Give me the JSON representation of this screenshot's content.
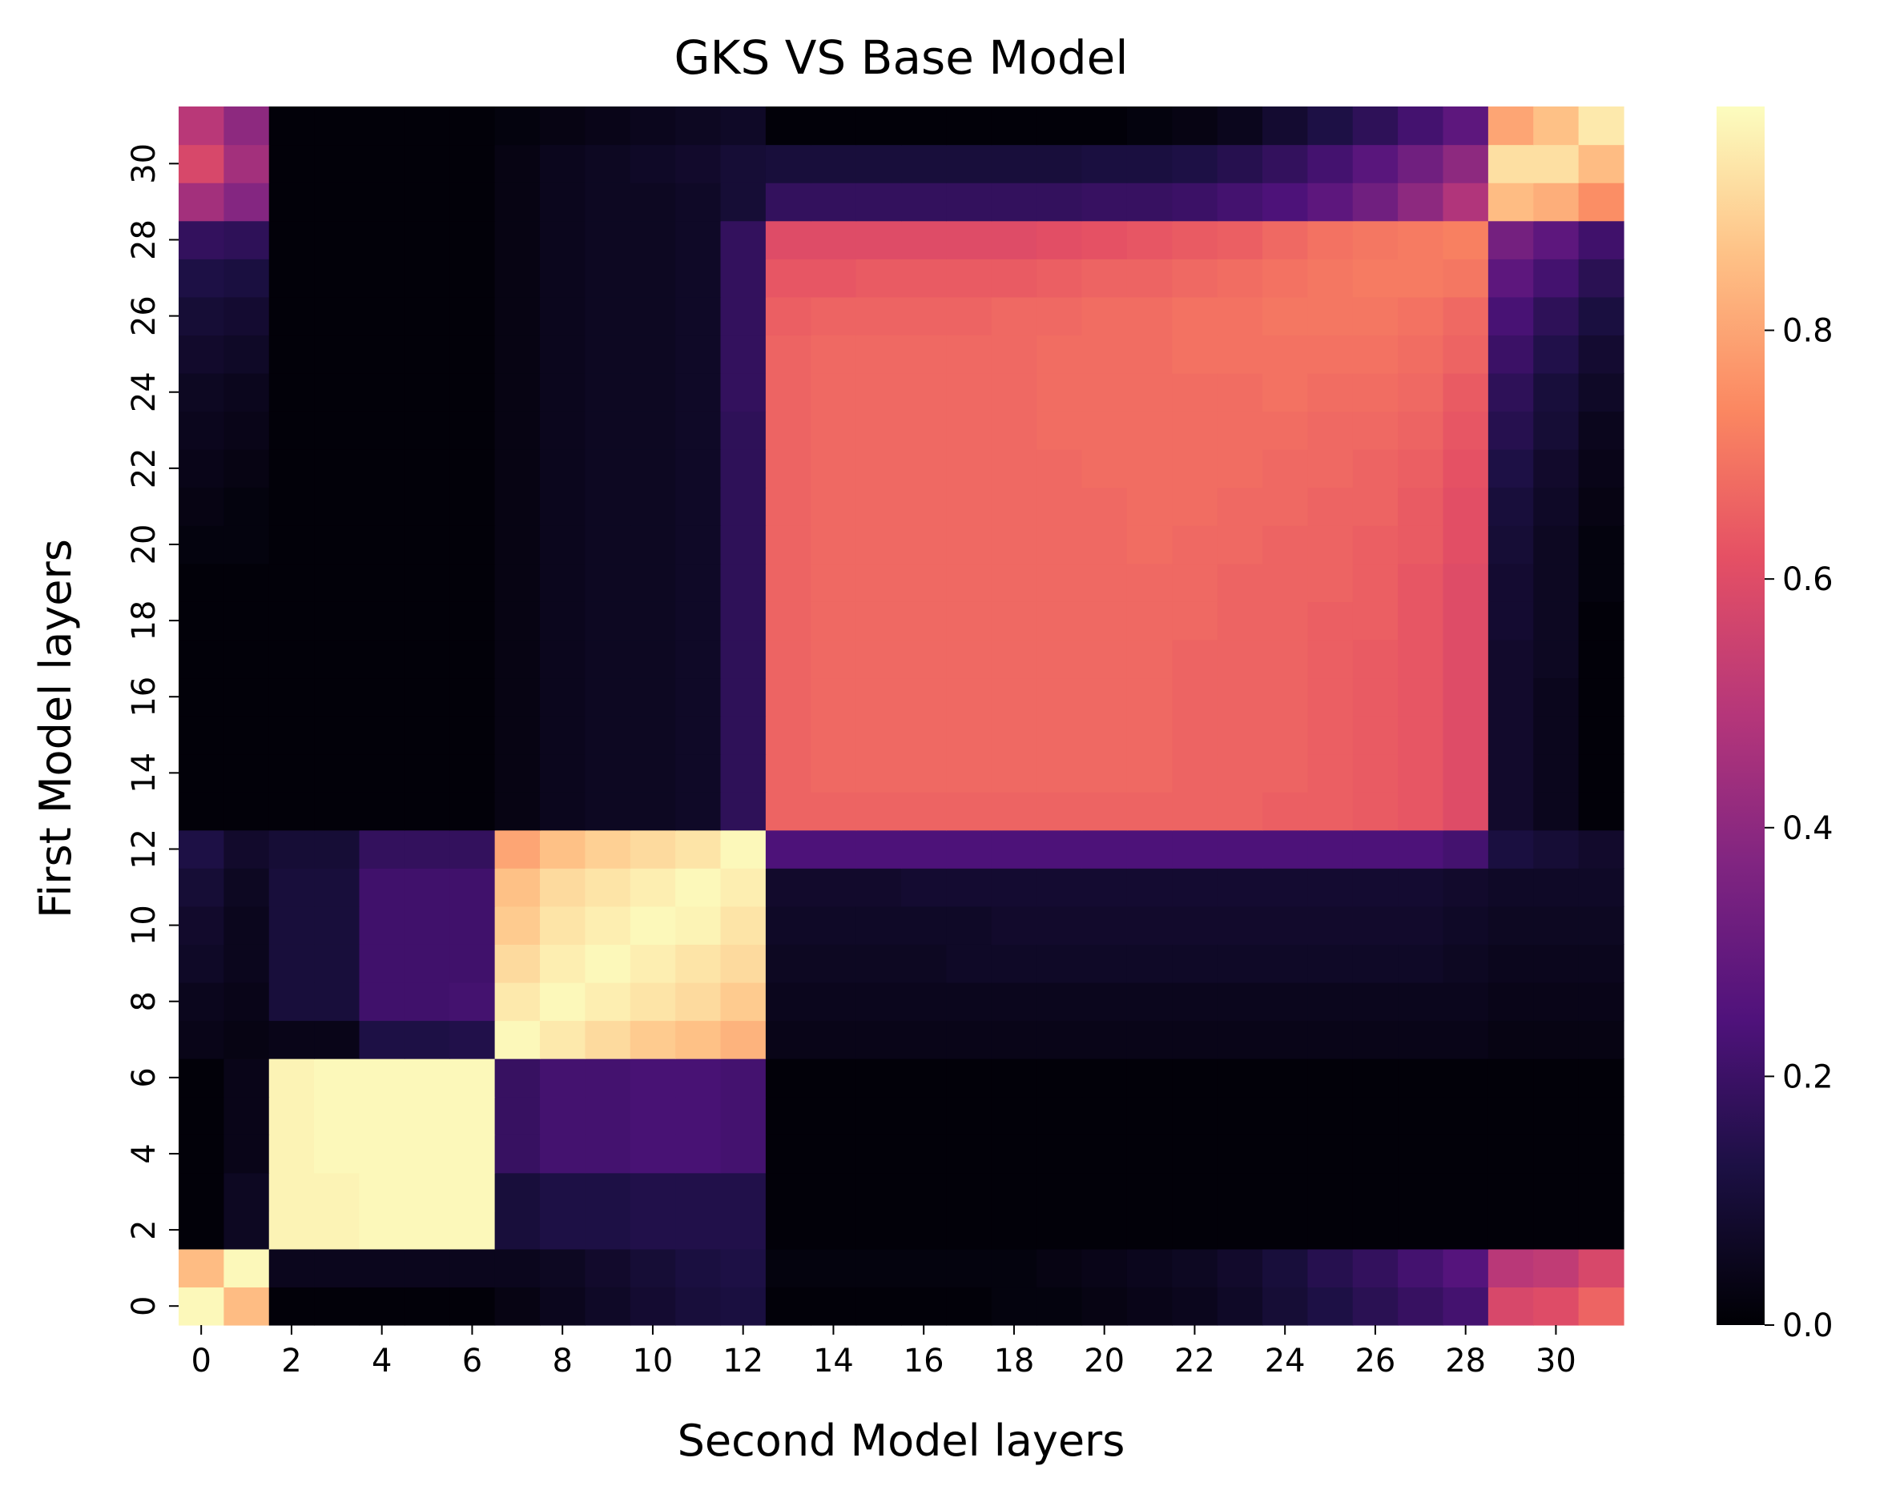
{
  "chart_data": {
    "type": "heatmap",
    "title": "GKS VS Base Model",
    "xlabel": "Second Model layers",
    "ylabel": "First Model layers",
    "rows": 32,
    "cols": 32,
    "x_tick_labels": [
      "0",
      "2",
      "4",
      "6",
      "8",
      "10",
      "12",
      "14",
      "16",
      "18",
      "20",
      "22",
      "24",
      "26",
      "28",
      "30"
    ],
    "y_tick_labels": [
      "0",
      "2",
      "4",
      "6",
      "8",
      "10",
      "12",
      "14",
      "16",
      "18",
      "20",
      "22",
      "24",
      "26",
      "28",
      "30"
    ],
    "colorbar": {
      "min": 0.0,
      "max": 0.98,
      "ticks": [
        "0.0",
        "0.2",
        "0.4",
        "0.6",
        "0.8"
      ],
      "colormap": "magma"
    },
    "values": [
      [
        0.97,
        0.85,
        0.01,
        0.01,
        0.01,
        0.01,
        0.01,
        0.03,
        0.05,
        0.07,
        0.09,
        0.11,
        0.12,
        0.01,
        0.01,
        0.01,
        0.01,
        0.01,
        0.02,
        0.02,
        0.03,
        0.04,
        0.05,
        0.07,
        0.1,
        0.13,
        0.16,
        0.19,
        0.22,
        0.58,
        0.6,
        0.66
      ],
      [
        0.85,
        0.97,
        0.05,
        0.05,
        0.05,
        0.05,
        0.05,
        0.05,
        0.06,
        0.08,
        0.1,
        0.12,
        0.13,
        0.02,
        0.02,
        0.02,
        0.02,
        0.02,
        0.02,
        0.03,
        0.04,
        0.05,
        0.06,
        0.08,
        0.11,
        0.15,
        0.18,
        0.22,
        0.26,
        0.5,
        0.52,
        0.58
      ],
      [
        0.01,
        0.06,
        0.96,
        0.96,
        0.97,
        0.97,
        0.97,
        0.11,
        0.13,
        0.13,
        0.14,
        0.14,
        0.14,
        0.01,
        0.01,
        0.01,
        0.01,
        0.01,
        0.01,
        0.01,
        0.01,
        0.01,
        0.01,
        0.01,
        0.01,
        0.01,
        0.01,
        0.01,
        0.01,
        0.01,
        0.01,
        0.01
      ],
      [
        0.01,
        0.06,
        0.96,
        0.96,
        0.97,
        0.97,
        0.97,
        0.11,
        0.13,
        0.13,
        0.14,
        0.14,
        0.14,
        0.01,
        0.01,
        0.01,
        0.01,
        0.01,
        0.01,
        0.01,
        0.01,
        0.01,
        0.01,
        0.01,
        0.01,
        0.01,
        0.01,
        0.01,
        0.01,
        0.01,
        0.01,
        0.01
      ],
      [
        0.01,
        0.04,
        0.96,
        0.97,
        0.97,
        0.97,
        0.97,
        0.19,
        0.22,
        0.22,
        0.23,
        0.23,
        0.22,
        0.01,
        0.01,
        0.01,
        0.01,
        0.01,
        0.01,
        0.01,
        0.01,
        0.01,
        0.01,
        0.01,
        0.01,
        0.01,
        0.01,
        0.01,
        0.01,
        0.01,
        0.01,
        0.01
      ],
      [
        0.01,
        0.04,
        0.96,
        0.97,
        0.97,
        0.97,
        0.97,
        0.19,
        0.22,
        0.22,
        0.23,
        0.23,
        0.22,
        0.01,
        0.01,
        0.01,
        0.01,
        0.01,
        0.01,
        0.01,
        0.01,
        0.01,
        0.01,
        0.01,
        0.01,
        0.01,
        0.01,
        0.01,
        0.01,
        0.01,
        0.01,
        0.01
      ],
      [
        0.01,
        0.04,
        0.96,
        0.97,
        0.97,
        0.97,
        0.97,
        0.19,
        0.22,
        0.22,
        0.23,
        0.23,
        0.22,
        0.01,
        0.01,
        0.01,
        0.01,
        0.01,
        0.01,
        0.01,
        0.01,
        0.01,
        0.01,
        0.01,
        0.01,
        0.01,
        0.01,
        0.01,
        0.01,
        0.01,
        0.01,
        0.01
      ],
      [
        0.04,
        0.03,
        0.04,
        0.04,
        0.13,
        0.13,
        0.14,
        0.97,
        0.94,
        0.91,
        0.88,
        0.86,
        0.83,
        0.04,
        0.04,
        0.04,
        0.04,
        0.04,
        0.04,
        0.04,
        0.04,
        0.04,
        0.04,
        0.04,
        0.04,
        0.04,
        0.04,
        0.04,
        0.04,
        0.03,
        0.03,
        0.03
      ],
      [
        0.05,
        0.04,
        0.11,
        0.11,
        0.21,
        0.21,
        0.22,
        0.94,
        0.97,
        0.95,
        0.93,
        0.91,
        0.88,
        0.05,
        0.05,
        0.05,
        0.05,
        0.05,
        0.05,
        0.05,
        0.05,
        0.05,
        0.05,
        0.05,
        0.05,
        0.05,
        0.05,
        0.05,
        0.05,
        0.04,
        0.04,
        0.04
      ],
      [
        0.07,
        0.05,
        0.11,
        0.11,
        0.21,
        0.21,
        0.21,
        0.91,
        0.95,
        0.97,
        0.95,
        0.93,
        0.91,
        0.06,
        0.06,
        0.06,
        0.06,
        0.07,
        0.07,
        0.07,
        0.07,
        0.07,
        0.07,
        0.07,
        0.07,
        0.07,
        0.07,
        0.07,
        0.06,
        0.05,
        0.05,
        0.05
      ],
      [
        0.08,
        0.05,
        0.11,
        0.11,
        0.21,
        0.21,
        0.21,
        0.88,
        0.93,
        0.95,
        0.97,
        0.96,
        0.93,
        0.07,
        0.07,
        0.07,
        0.07,
        0.07,
        0.08,
        0.08,
        0.08,
        0.08,
        0.08,
        0.08,
        0.08,
        0.08,
        0.08,
        0.08,
        0.07,
        0.06,
        0.06,
        0.06
      ],
      [
        0.1,
        0.06,
        0.11,
        0.11,
        0.21,
        0.21,
        0.21,
        0.86,
        0.91,
        0.93,
        0.95,
        0.97,
        0.95,
        0.08,
        0.08,
        0.08,
        0.09,
        0.09,
        0.09,
        0.09,
        0.09,
        0.09,
        0.09,
        0.09,
        0.09,
        0.09,
        0.09,
        0.09,
        0.08,
        0.07,
        0.07,
        0.07
      ],
      [
        0.13,
        0.08,
        0.1,
        0.1,
        0.18,
        0.18,
        0.18,
        0.8,
        0.86,
        0.89,
        0.91,
        0.93,
        0.97,
        0.24,
        0.24,
        0.24,
        0.24,
        0.24,
        0.24,
        0.24,
        0.24,
        0.24,
        0.24,
        0.24,
        0.24,
        0.24,
        0.24,
        0.24,
        0.22,
        0.12,
        0.1,
        0.08
      ],
      [
        0.01,
        0.01,
        0.01,
        0.01,
        0.01,
        0.01,
        0.01,
        0.03,
        0.05,
        0.06,
        0.06,
        0.07,
        0.17,
        0.66,
        0.66,
        0.66,
        0.66,
        0.66,
        0.66,
        0.66,
        0.66,
        0.66,
        0.66,
        0.66,
        0.65,
        0.65,
        0.64,
        0.63,
        0.6,
        0.08,
        0.05,
        0.01
      ],
      [
        0.01,
        0.01,
        0.01,
        0.01,
        0.01,
        0.01,
        0.01,
        0.03,
        0.05,
        0.06,
        0.06,
        0.07,
        0.17,
        0.66,
        0.67,
        0.67,
        0.67,
        0.67,
        0.67,
        0.67,
        0.67,
        0.67,
        0.66,
        0.66,
        0.66,
        0.65,
        0.64,
        0.63,
        0.6,
        0.08,
        0.05,
        0.01
      ],
      [
        0.01,
        0.01,
        0.01,
        0.01,
        0.01,
        0.01,
        0.01,
        0.03,
        0.05,
        0.06,
        0.06,
        0.07,
        0.17,
        0.66,
        0.67,
        0.67,
        0.67,
        0.67,
        0.67,
        0.67,
        0.67,
        0.67,
        0.66,
        0.66,
        0.66,
        0.65,
        0.64,
        0.63,
        0.6,
        0.08,
        0.05,
        0.01
      ],
      [
        0.01,
        0.01,
        0.01,
        0.01,
        0.01,
        0.01,
        0.01,
        0.03,
        0.05,
        0.06,
        0.06,
        0.07,
        0.17,
        0.66,
        0.67,
        0.67,
        0.67,
        0.67,
        0.67,
        0.67,
        0.67,
        0.67,
        0.66,
        0.66,
        0.66,
        0.65,
        0.64,
        0.63,
        0.6,
        0.08,
        0.05,
        0.01
      ],
      [
        0.01,
        0.01,
        0.01,
        0.01,
        0.01,
        0.01,
        0.01,
        0.03,
        0.05,
        0.06,
        0.06,
        0.07,
        0.17,
        0.66,
        0.67,
        0.67,
        0.67,
        0.67,
        0.67,
        0.67,
        0.67,
        0.67,
        0.66,
        0.66,
        0.66,
        0.65,
        0.64,
        0.63,
        0.6,
        0.08,
        0.06,
        0.01
      ],
      [
        0.01,
        0.01,
        0.01,
        0.01,
        0.01,
        0.01,
        0.01,
        0.03,
        0.05,
        0.06,
        0.06,
        0.07,
        0.17,
        0.66,
        0.67,
        0.67,
        0.67,
        0.67,
        0.67,
        0.67,
        0.67,
        0.67,
        0.67,
        0.66,
        0.66,
        0.65,
        0.65,
        0.63,
        0.6,
        0.09,
        0.06,
        0.01
      ],
      [
        0.01,
        0.01,
        0.01,
        0.01,
        0.01,
        0.01,
        0.01,
        0.03,
        0.05,
        0.06,
        0.06,
        0.07,
        0.17,
        0.66,
        0.67,
        0.67,
        0.67,
        0.67,
        0.67,
        0.67,
        0.67,
        0.67,
        0.67,
        0.66,
        0.66,
        0.66,
        0.65,
        0.63,
        0.6,
        0.09,
        0.06,
        0.02
      ],
      [
        0.02,
        0.02,
        0.01,
        0.01,
        0.01,
        0.01,
        0.01,
        0.03,
        0.05,
        0.06,
        0.06,
        0.07,
        0.17,
        0.66,
        0.67,
        0.67,
        0.67,
        0.67,
        0.67,
        0.67,
        0.67,
        0.68,
        0.67,
        0.67,
        0.66,
        0.66,
        0.65,
        0.64,
        0.61,
        0.1,
        0.06,
        0.02
      ],
      [
        0.03,
        0.02,
        0.01,
        0.01,
        0.01,
        0.01,
        0.01,
        0.03,
        0.05,
        0.06,
        0.06,
        0.07,
        0.17,
        0.66,
        0.67,
        0.67,
        0.67,
        0.67,
        0.67,
        0.67,
        0.67,
        0.68,
        0.68,
        0.67,
        0.67,
        0.66,
        0.66,
        0.64,
        0.61,
        0.11,
        0.07,
        0.03
      ],
      [
        0.04,
        0.03,
        0.01,
        0.01,
        0.01,
        0.01,
        0.01,
        0.03,
        0.05,
        0.06,
        0.06,
        0.07,
        0.17,
        0.66,
        0.67,
        0.67,
        0.67,
        0.67,
        0.67,
        0.67,
        0.68,
        0.68,
        0.68,
        0.68,
        0.67,
        0.67,
        0.66,
        0.65,
        0.62,
        0.13,
        0.08,
        0.04
      ],
      [
        0.05,
        0.04,
        0.01,
        0.01,
        0.01,
        0.01,
        0.01,
        0.03,
        0.05,
        0.06,
        0.06,
        0.07,
        0.17,
        0.66,
        0.67,
        0.67,
        0.67,
        0.67,
        0.67,
        0.68,
        0.68,
        0.68,
        0.68,
        0.68,
        0.68,
        0.67,
        0.67,
        0.66,
        0.63,
        0.15,
        0.1,
        0.05
      ],
      [
        0.06,
        0.05,
        0.01,
        0.01,
        0.01,
        0.01,
        0.01,
        0.03,
        0.05,
        0.06,
        0.06,
        0.07,
        0.18,
        0.66,
        0.67,
        0.67,
        0.67,
        0.67,
        0.67,
        0.68,
        0.68,
        0.68,
        0.68,
        0.68,
        0.69,
        0.68,
        0.68,
        0.67,
        0.64,
        0.17,
        0.11,
        0.07
      ],
      [
        0.08,
        0.07,
        0.01,
        0.01,
        0.01,
        0.01,
        0.01,
        0.03,
        0.05,
        0.06,
        0.06,
        0.07,
        0.18,
        0.66,
        0.67,
        0.67,
        0.67,
        0.67,
        0.67,
        0.68,
        0.68,
        0.68,
        0.69,
        0.69,
        0.69,
        0.69,
        0.69,
        0.68,
        0.66,
        0.2,
        0.14,
        0.09
      ],
      [
        0.1,
        0.09,
        0.01,
        0.01,
        0.01,
        0.01,
        0.01,
        0.03,
        0.05,
        0.06,
        0.06,
        0.07,
        0.18,
        0.65,
        0.66,
        0.66,
        0.66,
        0.66,
        0.67,
        0.67,
        0.68,
        0.68,
        0.69,
        0.69,
        0.7,
        0.7,
        0.7,
        0.69,
        0.67,
        0.23,
        0.17,
        0.12
      ],
      [
        0.13,
        0.12,
        0.01,
        0.01,
        0.01,
        0.01,
        0.01,
        0.03,
        0.05,
        0.06,
        0.06,
        0.07,
        0.18,
        0.63,
        0.63,
        0.64,
        0.64,
        0.64,
        0.64,
        0.65,
        0.66,
        0.66,
        0.67,
        0.68,
        0.69,
        0.7,
        0.71,
        0.71,
        0.7,
        0.28,
        0.22,
        0.16
      ],
      [
        0.18,
        0.17,
        0.01,
        0.01,
        0.01,
        0.01,
        0.01,
        0.03,
        0.05,
        0.06,
        0.06,
        0.07,
        0.18,
        0.6,
        0.6,
        0.6,
        0.6,
        0.6,
        0.6,
        0.61,
        0.62,
        0.63,
        0.64,
        0.65,
        0.67,
        0.69,
        0.7,
        0.71,
        0.72,
        0.34,
        0.28,
        0.21
      ],
      [
        0.45,
        0.38,
        0.01,
        0.01,
        0.01,
        0.01,
        0.01,
        0.03,
        0.05,
        0.06,
        0.06,
        0.07,
        0.1,
        0.18,
        0.18,
        0.18,
        0.18,
        0.18,
        0.18,
        0.18,
        0.19,
        0.19,
        0.2,
        0.22,
        0.24,
        0.28,
        0.33,
        0.4,
        0.48,
        0.85,
        0.82,
        0.75
      ],
      [
        0.58,
        0.45,
        0.01,
        0.01,
        0.01,
        0.01,
        0.01,
        0.03,
        0.05,
        0.06,
        0.07,
        0.08,
        0.1,
        0.11,
        0.11,
        0.11,
        0.11,
        0.11,
        0.11,
        0.11,
        0.12,
        0.12,
        0.13,
        0.15,
        0.18,
        0.22,
        0.27,
        0.33,
        0.4,
        0.92,
        0.92,
        0.85
      ],
      [
        0.5,
        0.4,
        0.01,
        0.01,
        0.01,
        0.01,
        0.01,
        0.02,
        0.03,
        0.04,
        0.05,
        0.06,
        0.07,
        0.01,
        0.01,
        0.01,
        0.01,
        0.01,
        0.01,
        0.01,
        0.01,
        0.02,
        0.03,
        0.05,
        0.09,
        0.13,
        0.17,
        0.22,
        0.28,
        0.8,
        0.86,
        0.94
      ]
    ]
  }
}
